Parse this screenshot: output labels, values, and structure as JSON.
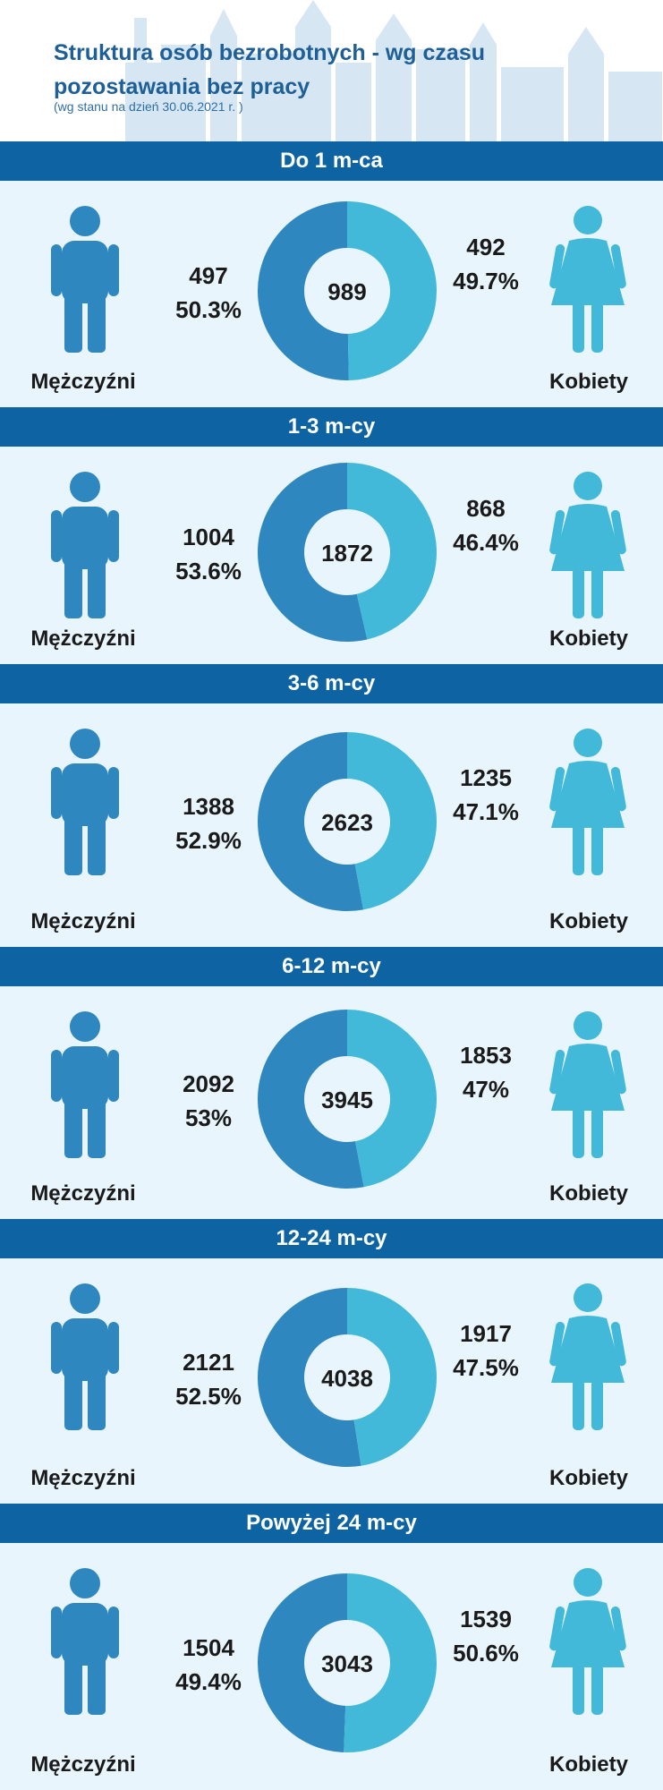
{
  "header": {
    "title": "Struktura osób bezrobotnych - wg czasu pozostawania bez pracy",
    "subtitle": "(wg stanu na dzień 30.06.2021 r. )"
  },
  "labels": {
    "men": "Mężczyźni",
    "women": "Kobiety"
  },
  "colors": {
    "band": "#0e63a3",
    "men": "#2e87bf",
    "women": "#43b9d9",
    "background": "#e8f5fd"
  },
  "icons": {
    "men": "man-icon",
    "women": "woman-icon"
  },
  "chart_data": {
    "type": "pie",
    "series_names": [
      "Mężczyźni",
      "Kobiety"
    ],
    "groups": [
      {
        "category": "Do 1 m-ca",
        "total": "989",
        "men": {
          "count": "497",
          "pct": "50.3%"
        },
        "women": {
          "count": "492",
          "pct": "49.7%"
        }
      },
      {
        "category": "1-3 m-cy",
        "total": "1872",
        "men": {
          "count": "1004",
          "pct": "53.6%"
        },
        "women": {
          "count": "868",
          "pct": "46.4%"
        }
      },
      {
        "category": "3-6 m-cy",
        "total": "2623",
        "men": {
          "count": "1388",
          "pct": "52.9%"
        },
        "women": {
          "count": "1235",
          "pct": "47.1%"
        }
      },
      {
        "category": "6-12 m-cy",
        "total": "3945",
        "men": {
          "count": "2092",
          "pct": "53%"
        },
        "women": {
          "count": "1853",
          "pct": "47%"
        }
      },
      {
        "category": "12-24 m-cy",
        "total": "4038",
        "men": {
          "count": "2121",
          "pct": "52.5%"
        },
        "women": {
          "count": "1917",
          "pct": "47.5%"
        }
      },
      {
        "category": "Powyżej 24 m-cy",
        "total": "3043",
        "men": {
          "count": "1504",
          "pct": "49.4%"
        },
        "women": {
          "count": "1539",
          "pct": "50.6%"
        }
      }
    ]
  }
}
